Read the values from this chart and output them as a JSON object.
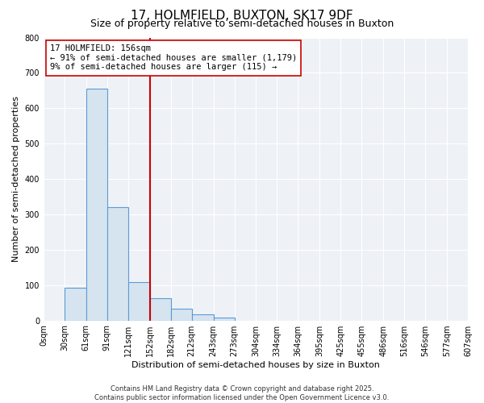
{
  "title": "17, HOLMFIELD, BUXTON, SK17 9DF",
  "subtitle": "Size of property relative to semi-detached houses in Buxton",
  "xlabel": "Distribution of semi-detached houses by size in Buxton",
  "ylabel": "Number of semi-detached properties",
  "bin_labels": [
    "0sqm",
    "30sqm",
    "61sqm",
    "91sqm",
    "121sqm",
    "152sqm",
    "182sqm",
    "212sqm",
    "243sqm",
    "273sqm",
    "304sqm",
    "334sqm",
    "364sqm",
    "395sqm",
    "425sqm",
    "455sqm",
    "486sqm",
    "516sqm",
    "546sqm",
    "577sqm",
    "607sqm"
  ],
  "bin_edges": [
    0,
    30,
    61,
    91,
    121,
    152,
    182,
    212,
    243,
    273,
    304,
    334,
    364,
    395,
    425,
    455,
    486,
    516,
    546,
    577,
    607
  ],
  "bar_heights": [
    0,
    93,
    655,
    320,
    108,
    62,
    33,
    18,
    8,
    0,
    0,
    0,
    0,
    0,
    0,
    0,
    0,
    0,
    0,
    0
  ],
  "bar_color": "#d6e4f0",
  "bar_edge_color": "#5b9bd5",
  "vline_x": 152,
  "vline_color": "#cc0000",
  "annotation_title": "17 HOLMFIELD: 156sqm",
  "annotation_line1": "← 91% of semi-detached houses are smaller (1,179)",
  "annotation_line2": "9% of semi-detached houses are larger (115) →",
  "annotation_box_edge_color": "#cc0000",
  "ylim": [
    0,
    800
  ],
  "yticks": [
    0,
    100,
    200,
    300,
    400,
    500,
    600,
    700,
    800
  ],
  "background_color": "#ffffff",
  "plot_bg_color": "#eef2f7",
  "footer_line1": "Contains HM Land Registry data © Crown copyright and database right 2025.",
  "footer_line2": "Contains public sector information licensed under the Open Government Licence v3.0.",
  "title_fontsize": 11,
  "subtitle_fontsize": 9,
  "axis_label_fontsize": 8,
  "tick_fontsize": 7,
  "annotation_fontsize": 7.5,
  "footer_fontsize": 6
}
